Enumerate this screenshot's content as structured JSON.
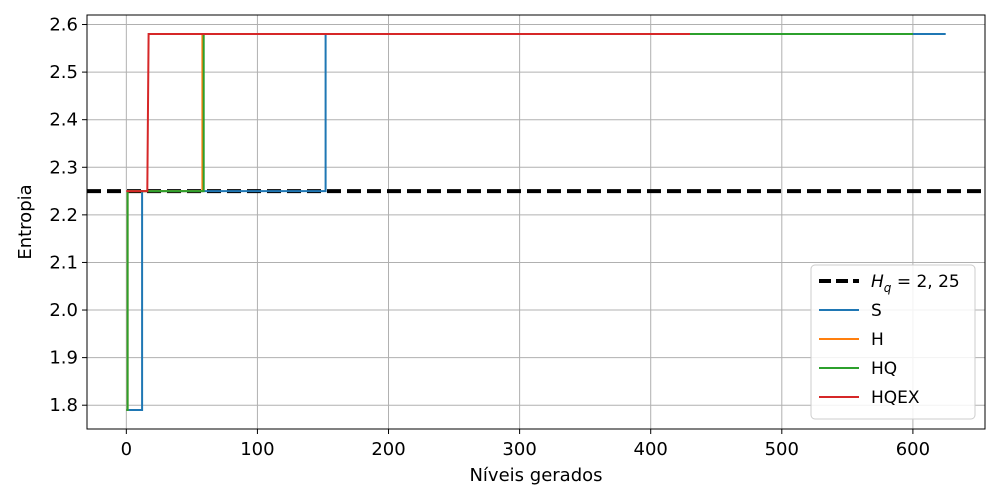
{
  "chart_data": {
    "type": "line",
    "xlabel": "Níveis gerados",
    "ylabel": "Entropia",
    "xlim": [
      -30,
      655
    ],
    "ylim": [
      1.75,
      2.62
    ],
    "x_ticks": [
      0,
      100,
      200,
      300,
      400,
      500,
      600
    ],
    "y_ticks": [
      1.8,
      1.9,
      2.0,
      2.1,
      2.2,
      2.3,
      2.4,
      2.5,
      2.6
    ],
    "x_tick_labels": [
      "0",
      "100",
      "200",
      "300",
      "400",
      "500",
      "600"
    ],
    "y_tick_labels": [
      "1.8",
      "1.9",
      "2.0",
      "2.1",
      "2.2",
      "2.3",
      "2.4",
      "2.5",
      "2.6"
    ],
    "grid": true,
    "legend_position": "lower-right",
    "reference_line": {
      "name": "H_q = 2,25",
      "label_main": "H",
      "label_sub": "q",
      "label_rest": " = 2, 25",
      "y": 2.25,
      "color": "#000000",
      "style": "dashed"
    },
    "series": [
      {
        "name": "S",
        "color": "#1f77b4",
        "x": [
          0,
          12,
          12,
          152,
          152,
          625
        ],
        "y": [
          1.79,
          1.79,
          2.25,
          2.25,
          2.58,
          2.58
        ]
      },
      {
        "name": "H",
        "color": "#ff7f0e",
        "x": [
          0,
          1,
          1,
          58,
          58,
          520
        ],
        "y": [
          1.79,
          1.79,
          2.25,
          2.25,
          2.58,
          2.58
        ]
      },
      {
        "name": "HQ",
        "color": "#2ca02c",
        "x": [
          0,
          1,
          1,
          59,
          59,
          600
        ],
        "y": [
          1.79,
          1.79,
          2.25,
          2.25,
          2.58,
          2.58
        ]
      },
      {
        "name": "HQEX",
        "color": "#d62728",
        "x": [
          0,
          2,
          2,
          16,
          17,
          430
        ],
        "y": [
          2.25,
          2.25,
          2.25,
          2.25,
          2.58,
          2.58
        ]
      }
    ]
  }
}
